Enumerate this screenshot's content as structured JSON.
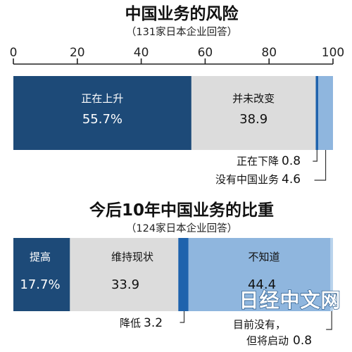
{
  "watermark": "日经中文网",
  "chart_data": [
    {
      "type": "bar",
      "orientation": "horizontal-stacked",
      "title": "中国业务的风险",
      "subtitle": "（131家日本企业回答）",
      "xlim": [
        0,
        100
      ],
      "ticks": [
        "0",
        "20",
        "40",
        "60",
        "80",
        "100"
      ],
      "segments": [
        {
          "label": "正在上升",
          "value": 55.7,
          "display": "55.7%",
          "color": "#1d4a78",
          "text_color": "#ffffff"
        },
        {
          "label": "并未改变",
          "value": 38.9,
          "display": "38.9",
          "color": "#dcdcdc",
          "text_color": "#111111"
        },
        {
          "label": "正在下降",
          "value": 0.8,
          "display": "0.8",
          "color": "#1f63ad",
          "text_color": "#111111"
        },
        {
          "label": "没有中国业务",
          "value": 4.6,
          "display": "4.6",
          "color": "#8fb6de",
          "text_color": "#111111"
        }
      ]
    },
    {
      "type": "bar",
      "orientation": "horizontal-stacked",
      "title": "今后10年中国业务的比重",
      "subtitle": "（124家日本企业回答）",
      "xlim": [
        0,
        100
      ],
      "segments": [
        {
          "label": "提高",
          "value": 17.7,
          "display": "17.7%",
          "color": "#1d4a78",
          "text_color": "#ffffff"
        },
        {
          "label": "维持现状",
          "value": 33.9,
          "display": "33.9",
          "color": "#dcdcdc",
          "text_color": "#111111"
        },
        {
          "label": "降低",
          "value": 3.2,
          "display": "3.2",
          "color": "#1f63ad",
          "text_color": "#111111"
        },
        {
          "label": "不知道",
          "value": 44.4,
          "display": "44.4",
          "color": "#8fb6de",
          "text_color": "#111111"
        },
        {
          "label_lines": [
            "目前没有，",
            "但将启动"
          ],
          "value": 0.8,
          "display": "0.8",
          "color": "#b9d3ec",
          "text_color": "#111111"
        }
      ]
    }
  ]
}
